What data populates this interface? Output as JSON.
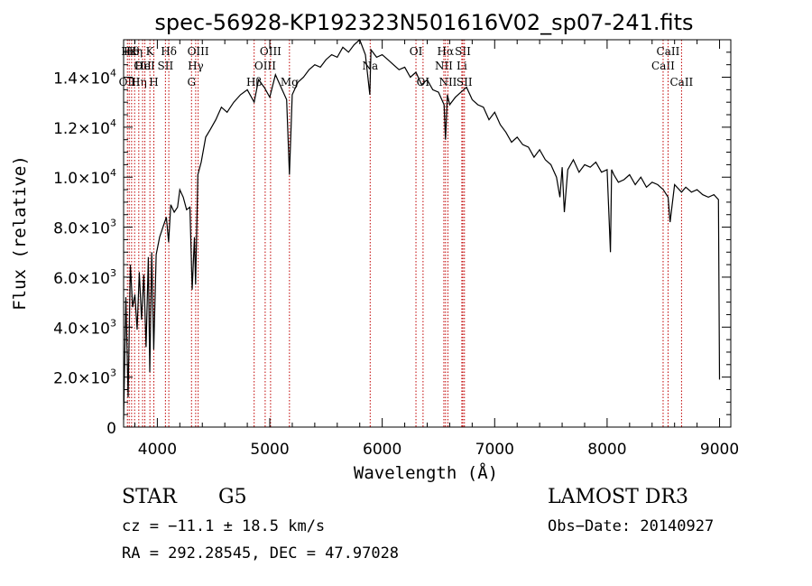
{
  "chart_data": {
    "type": "line",
    "title": "spec-56928-KP192323N501616V02_sp07-241.fits",
    "xlabel": "Wavelength (Å)",
    "ylabel": "Flux (relative)",
    "xlim": [
      3700,
      9100
    ],
    "ylim": [
      0,
      15500
    ],
    "x_ticks": [
      {
        "value": 4000,
        "label": "4000"
      },
      {
        "value": 5000,
        "label": "5000"
      },
      {
        "value": 6000,
        "label": "6000"
      },
      {
        "value": 7000,
        "label": "7000"
      },
      {
        "value": 8000,
        "label": "8000"
      },
      {
        "value": 9000,
        "label": "9000"
      }
    ],
    "y_ticks": [
      {
        "value": 0,
        "mantissa": "0",
        "exponent": ""
      },
      {
        "value": 2000,
        "mantissa": "2.0×10",
        "exponent": "3"
      },
      {
        "value": 4000,
        "mantissa": "4.0×10",
        "exponent": "3"
      },
      {
        "value": 6000,
        "mantissa": "6.0×10",
        "exponent": "3"
      },
      {
        "value": 8000,
        "mantissa": "8.0×10",
        "exponent": "3"
      },
      {
        "value": 10000,
        "mantissa": "1.0×10",
        "exponent": "4"
      },
      {
        "value": 12000,
        "mantissa": "1.2×10",
        "exponent": "4"
      },
      {
        "value": 14000,
        "mantissa": "1.4×10",
        "exponent": "4"
      }
    ],
    "grid": false,
    "series": [
      {
        "name": "flux",
        "x": [
          3700,
          3720,
          3740,
          3760,
          3780,
          3800,
          3820,
          3840,
          3860,
          3880,
          3900,
          3920,
          3933,
          3950,
          3968,
          3990,
          4020,
          4050,
          4080,
          4100,
          4120,
          4150,
          4180,
          4200,
          4230,
          4260,
          4290,
          4310,
          4330,
          4340,
          4360,
          4390,
          4430,
          4470,
          4520,
          4570,
          4620,
          4680,
          4740,
          4800,
          4861,
          4900,
          4950,
          5000,
          5050,
          5100,
          5150,
          5175,
          5200,
          5250,
          5300,
          5350,
          5400,
          5450,
          5500,
          5550,
          5600,
          5650,
          5700,
          5750,
          5800,
          5850,
          5890,
          5900,
          5950,
          6000,
          6050,
          6100,
          6150,
          6200,
          6250,
          6300,
          6350,
          6400,
          6450,
          6500,
          6550,
          6563,
          6580,
          6600,
          6650,
          6700,
          6750,
          6800,
          6850,
          6900,
          6950,
          7000,
          7050,
          7100,
          7150,
          7200,
          7250,
          7300,
          7350,
          7400,
          7450,
          7500,
          7550,
          7580,
          7600,
          7620,
          7650,
          7700,
          7750,
          7800,
          7850,
          7900,
          7950,
          8000,
          8030,
          8040,
          8060,
          8100,
          8150,
          8200,
          8250,
          8300,
          8350,
          8400,
          8450,
          8500,
          8542,
          8560,
          8600,
          8662,
          8700,
          8750,
          8800,
          8850,
          8900,
          8950,
          8990,
          9000
        ],
        "y": [
          300,
          5200,
          1200,
          6500,
          4800,
          5300,
          3900,
          6200,
          4300,
          6100,
          3200,
          6800,
          2200,
          7000,
          3100,
          6900,
          7600,
          8000,
          8400,
          7400,
          8900,
          8600,
          8800,
          9500,
          9200,
          8700,
          8800,
          5500,
          7600,
          5700,
          10100,
          10600,
          11600,
          11900,
          12300,
          12800,
          12600,
          13000,
          13300,
          13500,
          13000,
          13900,
          13600,
          13200,
          14100,
          13600,
          13100,
          10100,
          13300,
          13800,
          14000,
          14300,
          14500,
          14400,
          14700,
          14900,
          14800,
          15200,
          15000,
          15300,
          15500,
          14900,
          13300,
          15100,
          14800,
          14900,
          14700,
          14500,
          14300,
          14400,
          14000,
          14200,
          13700,
          13900,
          13500,
          13400,
          12900,
          11500,
          13300,
          12900,
          13200,
          13400,
          13600,
          13100,
          12900,
          12800,
          12300,
          12600,
          12100,
          11800,
          11400,
          11600,
          11300,
          11200,
          10800,
          11100,
          10700,
          10500,
          10000,
          9200,
          10400,
          8600,
          10300,
          10700,
          10200,
          10500,
          10400,
          10600,
          10200,
          10300,
          7000,
          10300,
          10100,
          9800,
          9900,
          10100,
          9700,
          10000,
          9600,
          9800,
          9700,
          9500,
          9200,
          8200,
          9700,
          9400,
          9600,
          9400,
          9500,
          9300,
          9200,
          9300,
          9100,
          1900
        ]
      }
    ],
    "line_markers": [
      {
        "x": 3734,
        "label": "OII",
        "row": 3
      },
      {
        "x": 3750,
        "label": "Hκ",
        "row": 1
      },
      {
        "x": 3771,
        "label": "Hθ",
        "row": 1
      },
      {
        "x": 3798,
        "label": "Hη",
        "row": 1
      },
      {
        "x": 3835,
        "label": "Hη",
        "row": 3
      },
      {
        "x": 3869,
        "label": "OII",
        "row": 2
      },
      {
        "x": 3889,
        "label": "HeI",
        "row": 2
      },
      {
        "x": 3934,
        "label": "K",
        "row": 1
      },
      {
        "x": 3969,
        "label": "H",
        "row": 3
      },
      {
        "x": 4072,
        "label": "SII",
        "row": 2
      },
      {
        "x": 4102,
        "label": "Hδ",
        "row": 1
      },
      {
        "x": 4304,
        "label": "G",
        "row": 3
      },
      {
        "x": 4341,
        "label": "Hγ",
        "row": 2
      },
      {
        "x": 4363,
        "label": "OIII",
        "row": 1
      },
      {
        "x": 4861,
        "label": "Hβ",
        "row": 3
      },
      {
        "x": 4959,
        "label": "OIII",
        "row": 2
      },
      {
        "x": 5007,
        "label": "OIII",
        "row": 1
      },
      {
        "x": 5175,
        "label": "Mg",
        "row": 3
      },
      {
        "x": 5893,
        "label": "Na",
        "row": 2
      },
      {
        "x": 6300,
        "label": "OI",
        "row": 1
      },
      {
        "x": 6363,
        "label": "OI",
        "row": 3
      },
      {
        "x": 6548,
        "label": "NII",
        "row": 2
      },
      {
        "x": 6563,
        "label": "Hα",
        "row": 1
      },
      {
        "x": 6584,
        "label": "NII",
        "row": 3
      },
      {
        "x": 6708,
        "label": "Li",
        "row": 2
      },
      {
        "x": 6717,
        "label": "SII",
        "row": 1
      },
      {
        "x": 6731,
        "label": "SII",
        "row": 3
      },
      {
        "x": 8498,
        "label": "CaII",
        "row": 2
      },
      {
        "x": 8542,
        "label": "CaII",
        "row": 1
      },
      {
        "x": 8662,
        "label": "CaII",
        "row": 3
      }
    ]
  },
  "info": {
    "object_class": "STAR",
    "subclass": "G5",
    "survey": "LAMOST DR3",
    "redshift": "cz = −11.1 ± 18.5 km/s",
    "obs_date": "Obs−Date: 20140927",
    "coords": "RA = 292.28545, DEC =  47.97028"
  }
}
